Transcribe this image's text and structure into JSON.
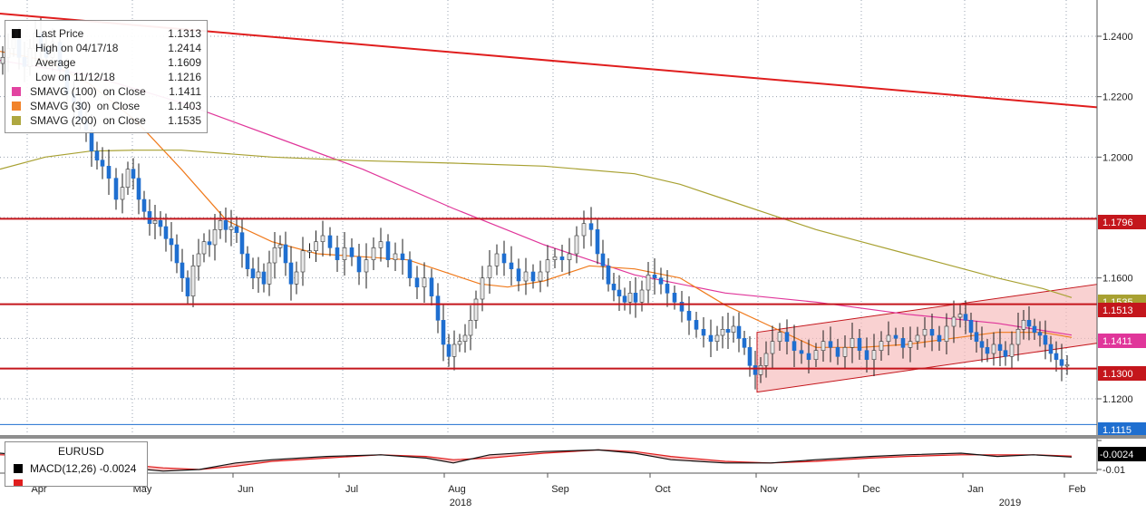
{
  "chart_data": {
    "type": "candlestick",
    "instrument": "EURUSD",
    "x_months": [
      "Apr",
      "May",
      "Jun",
      "Jul",
      "Aug",
      "Sep",
      "Oct",
      "Nov",
      "Dec",
      "Jan",
      "Feb"
    ],
    "x_years": [
      "2018",
      "2019"
    ],
    "y_ticks": [
      "1.2400",
      "1.2200",
      "1.2000",
      "1.1600",
      "1.1200"
    ],
    "ylim": [
      1.108,
      1.252
    ],
    "price_path": [
      [
        0,
        1.231
      ],
      [
        6,
        1.233
      ],
      [
        12,
        1.236
      ],
      [
        18,
        1.239
      ],
      [
        24,
        1.233
      ],
      [
        30,
        1.23
      ],
      [
        36,
        1.236
      ],
      [
        42,
        1.241
      ],
      [
        48,
        1.236
      ],
      [
        54,
        1.233
      ],
      [
        62,
        1.238
      ],
      [
        70,
        1.229
      ],
      [
        78,
        1.221
      ],
      [
        85,
        1.218
      ],
      [
        92,
        1.212
      ],
      [
        98,
        1.209
      ],
      [
        104,
        1.202
      ],
      [
        110,
        1.199
      ],
      [
        116,
        1.197
      ],
      [
        124,
        1.193
      ],
      [
        132,
        1.186
      ],
      [
        138,
        1.19
      ],
      [
        144,
        1.196
      ],
      [
        150,
        1.193
      ],
      [
        156,
        1.186
      ],
      [
        162,
        1.182
      ],
      [
        168,
        1.178
      ],
      [
        174,
        1.179
      ],
      [
        180,
        1.177
      ],
      [
        186,
        1.173
      ],
      [
        192,
        1.171
      ],
      [
        198,
        1.165
      ],
      [
        204,
        1.16
      ],
      [
        210,
        1.154
      ],
      [
        216,
        1.164
      ],
      [
        222,
        1.168
      ],
      [
        228,
        1.172
      ],
      [
        234,
        1.171
      ],
      [
        240,
        1.176
      ],
      [
        246,
        1.179
      ],
      [
        252,
        1.176
      ],
      [
        258,
        1.177
      ],
      [
        264,
        1.175
      ],
      [
        270,
        1.168
      ],
      [
        276,
        1.163
      ],
      [
        282,
        1.16
      ],
      [
        288,
        1.162
      ],
      [
        294,
        1.158
      ],
      [
        300,
        1.165
      ],
      [
        306,
        1.17
      ],
      [
        312,
        1.171
      ],
      [
        318,
        1.165
      ],
      [
        324,
        1.158
      ],
      [
        330,
        1.162
      ],
      [
        338,
        1.169
      ],
      [
        345,
        1.169
      ],
      [
        352,
        1.172
      ],
      [
        360,
        1.174
      ],
      [
        368,
        1.17
      ],
      [
        376,
        1.166
      ],
      [
        384,
        1.17
      ],
      [
        392,
        1.167
      ],
      [
        400,
        1.162
      ],
      [
        408,
        1.166
      ],
      [
        416,
        1.17
      ],
      [
        424,
        1.172
      ],
      [
        432,
        1.166
      ],
      [
        440,
        1.168
      ],
      [
        448,
        1.166
      ],
      [
        456,
        1.16
      ],
      [
        464,
        1.157
      ],
      [
        472,
        1.16
      ],
      [
        480,
        1.154
      ],
      [
        486,
        1.146
      ],
      [
        492,
        1.138
      ],
      [
        498,
        1.134
      ],
      [
        504,
        1.138
      ],
      [
        510,
        1.139
      ],
      [
        516,
        1.141
      ],
      [
        522,
        1.146
      ],
      [
        528,
        1.153
      ],
      [
        536,
        1.16
      ],
      [
        544,
        1.164
      ],
      [
        552,
        1.168
      ],
      [
        560,
        1.165
      ],
      [
        568,
        1.163
      ],
      [
        576,
        1.159
      ],
      [
        584,
        1.162
      ],
      [
        592,
        1.159
      ],
      [
        600,
        1.162
      ],
      [
        608,
        1.166
      ],
      [
        616,
        1.167
      ],
      [
        624,
        1.166
      ],
      [
        632,
        1.168
      ],
      [
        640,
        1.174
      ],
      [
        648,
        1.178
      ],
      [
        656,
        1.176
      ],
      [
        662,
        1.168
      ],
      [
        668,
        1.164
      ],
      [
        674,
        1.158
      ],
      [
        680,
        1.156
      ],
      [
        686,
        1.154
      ],
      [
        692,
        1.152
      ],
      [
        698,
        1.155
      ],
      [
        704,
        1.152
      ],
      [
        712,
        1.156
      ],
      [
        718,
        1.161
      ],
      [
        726,
        1.16
      ],
      [
        732,
        1.158
      ],
      [
        740,
        1.155
      ],
      [
        748,
        1.152
      ],
      [
        756,
        1.149
      ],
      [
        764,
        1.146
      ],
      [
        772,
        1.143
      ],
      [
        780,
        1.141
      ],
      [
        788,
        1.139
      ],
      [
        794,
        1.141
      ],
      [
        800,
        1.143
      ],
      [
        806,
        1.142
      ],
      [
        812,
        1.144
      ],
      [
        818,
        1.14
      ],
      [
        824,
        1.137
      ],
      [
        830,
        1.131
      ],
      [
        836,
        1.128
      ],
      [
        842,
        1.131
      ],
      [
        848,
        1.135
      ],
      [
        856,
        1.139
      ],
      [
        864,
        1.142
      ],
      [
        872,
        1.139
      ],
      [
        880,
        1.136
      ],
      [
        888,
        1.135
      ],
      [
        896,
        1.133
      ],
      [
        904,
        1.136
      ],
      [
        912,
        1.139
      ],
      [
        920,
        1.137
      ],
      [
        928,
        1.134
      ],
      [
        936,
        1.137
      ],
      [
        944,
        1.14
      ],
      [
        952,
        1.136
      ],
      [
        960,
        1.133
      ],
      [
        968,
        1.136
      ],
      [
        976,
        1.139
      ],
      [
        984,
        1.141
      ],
      [
        992,
        1.14
      ],
      [
        1000,
        1.137
      ],
      [
        1008,
        1.139
      ],
      [
        1016,
        1.141
      ],
      [
        1024,
        1.143
      ],
      [
        1032,
        1.141
      ],
      [
        1040,
        1.139
      ],
      [
        1048,
        1.144
      ],
      [
        1056,
        1.147
      ],
      [
        1062,
        1.148
      ],
      [
        1068,
        1.146
      ],
      [
        1074,
        1.142
      ],
      [
        1080,
        1.139
      ],
      [
        1086,
        1.137
      ],
      [
        1092,
        1.135
      ],
      [
        1100,
        1.138
      ],
      [
        1106,
        1.136
      ],
      [
        1112,
        1.134
      ],
      [
        1120,
        1.138
      ],
      [
        1126,
        1.143
      ],
      [
        1132,
        1.146
      ],
      [
        1138,
        1.144
      ],
      [
        1144,
        1.142
      ],
      [
        1150,
        1.141
      ],
      [
        1156,
        1.138
      ],
      [
        1162,
        1.135
      ],
      [
        1168,
        1.133
      ],
      [
        1174,
        1.131
      ],
      [
        1180,
        1.1313
      ]
    ],
    "series": [
      {
        "name": "SMAVG (100)  on Close",
        "color": "#e0369a",
        "points": [
          [
            0,
            1.232
          ],
          [
            100,
            1.227
          ],
          [
            200,
            1.218
          ],
          [
            300,
            1.207
          ],
          [
            400,
            1.196
          ],
          [
            500,
            1.183
          ],
          [
            600,
            1.171
          ],
          [
            700,
            1.161
          ],
          [
            800,
            1.155
          ],
          [
            900,
            1.152
          ],
          [
            1000,
            1.148
          ],
          [
            1100,
            1.145
          ],
          [
            1182,
            1.1411
          ]
        ]
      },
      {
        "name": "SMAVG (30)  on Close",
        "color": "#f07a1c",
        "points": [
          [
            0,
            1.235
          ],
          [
            50,
            1.232
          ],
          [
            100,
            1.224
          ],
          [
            150,
            1.212
          ],
          [
            200,
            1.196
          ],
          [
            250,
            1.179
          ],
          [
            300,
            1.172
          ],
          [
            350,
            1.168
          ],
          [
            400,
            1.167
          ],
          [
            450,
            1.166
          ],
          [
            500,
            1.161
          ],
          [
            530,
            1.158
          ],
          [
            560,
            1.157
          ],
          [
            600,
            1.159
          ],
          [
            650,
            1.164
          ],
          [
            700,
            1.163
          ],
          [
            750,
            1.16
          ],
          [
            800,
            1.151
          ],
          [
            850,
            1.144
          ],
          [
            900,
            1.137
          ],
          [
            950,
            1.137
          ],
          [
            1000,
            1.138
          ],
          [
            1050,
            1.14
          ],
          [
            1100,
            1.142
          ],
          [
            1150,
            1.142
          ],
          [
            1182,
            1.1403
          ]
        ]
      },
      {
        "name": "SMAVG (200)  on Close",
        "color": "#a8a132",
        "points": [
          [
            0,
            1.196
          ],
          [
            50,
            1.2
          ],
          [
            100,
            1.202
          ],
          [
            150,
            1.2023
          ],
          [
            200,
            1.2023
          ],
          [
            300,
            1.2
          ],
          [
            400,
            1.1988
          ],
          [
            500,
            1.198
          ],
          [
            600,
            1.197
          ],
          [
            700,
            1.1945
          ],
          [
            750,
            1.191
          ],
          [
            800,
            1.186
          ],
          [
            850,
            1.181
          ],
          [
            900,
            1.176
          ],
          [
            950,
            1.172
          ],
          [
            1000,
            1.168
          ],
          [
            1050,
            1.164
          ],
          [
            1100,
            1.16
          ],
          [
            1150,
            1.1565
          ],
          [
            1182,
            1.1535
          ]
        ]
      }
    ],
    "trendline": {
      "x": [
        0,
        1210
      ],
      "y": [
        1.2475,
        1.2165
      ]
    },
    "channel": {
      "lower": {
        "x": [
          835,
          1210
        ],
        "y": [
          1.1222,
          1.1384
        ]
      },
      "upper": {
        "x": [
          835,
          1210
        ],
        "y": [
          1.142,
          1.1579
        ]
      }
    },
    "horizontal_levels": [
      1.1796,
      1.1513,
      1.13,
      1.1115
    ],
    "right_labels": [
      {
        "text": "1.1796",
        "bg": "#c4161c",
        "color": "#ffffff"
      },
      {
        "text": "1.1535",
        "bg": "#a8a132",
        "color": "#ffffff"
      },
      {
        "text": "1.1513",
        "bg": "#c4161c",
        "color": "#ffffff"
      },
      {
        "text": "1.1411",
        "bg": "#e0369a",
        "color": "#ffffff"
      },
      {
        "text": "1.1300",
        "bg": "#c4161c",
        "color": "#ffffff"
      },
      {
        "text": "1.1115",
        "bg": "#1f6fd0",
        "color": "#ffffff"
      }
    ],
    "macd": {
      "y_ticks": [
        "-0.01"
      ],
      "right_label": "-0.0024",
      "macd_points": [
        [
          0,
          0.0
        ],
        [
          60,
          -0.003
        ],
        [
          120,
          -0.008
        ],
        [
          180,
          -0.011
        ],
        [
          220,
          -0.01
        ],
        [
          260,
          -0.006
        ],
        [
          300,
          -0.004
        ],
        [
          360,
          -0.002
        ],
        [
          420,
          -0.001
        ],
        [
          470,
          -0.003
        ],
        [
          500,
          -0.006
        ],
        [
          540,
          -0.001
        ],
        [
          600,
          0.001
        ],
        [
          660,
          0.002
        ],
        [
          700,
          0.0
        ],
        [
          740,
          -0.004
        ],
        [
          800,
          -0.006
        ],
        [
          850,
          -0.006
        ],
        [
          900,
          -0.004
        ],
        [
          960,
          -0.002
        ],
        [
          1000,
          -0.001
        ],
        [
          1060,
          0.0
        ],
        [
          1100,
          -0.002
        ],
        [
          1140,
          -0.001
        ],
        [
          1182,
          -0.0024
        ]
      ],
      "signal_points": [
        [
          0,
          -0.001
        ],
        [
          60,
          -0.002
        ],
        [
          120,
          -0.006
        ],
        [
          180,
          -0.009
        ],
        [
          220,
          -0.01
        ],
        [
          260,
          -0.008
        ],
        [
          300,
          -0.005
        ],
        [
          360,
          -0.003
        ],
        [
          420,
          -0.001
        ],
        [
          470,
          -0.002
        ],
        [
          500,
          -0.004
        ],
        [
          540,
          -0.003
        ],
        [
          600,
          0.0
        ],
        [
          660,
          0.002
        ],
        [
          700,
          0.001
        ],
        [
          740,
          -0.002
        ],
        [
          800,
          -0.005
        ],
        [
          850,
          -0.006
        ],
        [
          900,
          -0.005
        ],
        [
          960,
          -0.003
        ],
        [
          1000,
          -0.002
        ],
        [
          1060,
          -0.001
        ],
        [
          1100,
          -0.001
        ],
        [
          1140,
          -0.001
        ],
        [
          1182,
          -0.0018
        ]
      ]
    },
    "colors": {
      "up": "#e8e8e8",
      "down": "#1f6fd0",
      "level": "#c4161c",
      "trend": "#e01e1e",
      "channel_fill": "#f6b8b8",
      "grid": "#9aa3b0"
    }
  },
  "legend": {
    "rows": [
      {
        "label": "Last Price",
        "value": "1.1313",
        "color": "#000000"
      },
      {
        "label": "High on 04/17/18",
        "value": "1.2414",
        "color": "#ffffff"
      },
      {
        "label": "Average",
        "value": "1.1609",
        "color": "#ffffff"
      },
      {
        "label": "Low on 11/12/18",
        "value": "1.1216",
        "color": "#ffffff"
      },
      {
        "label": "SMAVG (100)  on Close",
        "value": "1.1411",
        "color": "#e0369a"
      },
      {
        "label": "SMAVG (30)  on Close",
        "value": "1.1403",
        "color": "#f07a1c"
      },
      {
        "label": "SMAVG (200)  on Close",
        "value": "1.1535",
        "color": "#a8a132"
      }
    ]
  },
  "macd_legend": {
    "title": "EURUSD",
    "line1": "MACD(12,26)  -0.0024",
    "line1_color": "#000000",
    "line2_color": "#e01e1e"
  }
}
